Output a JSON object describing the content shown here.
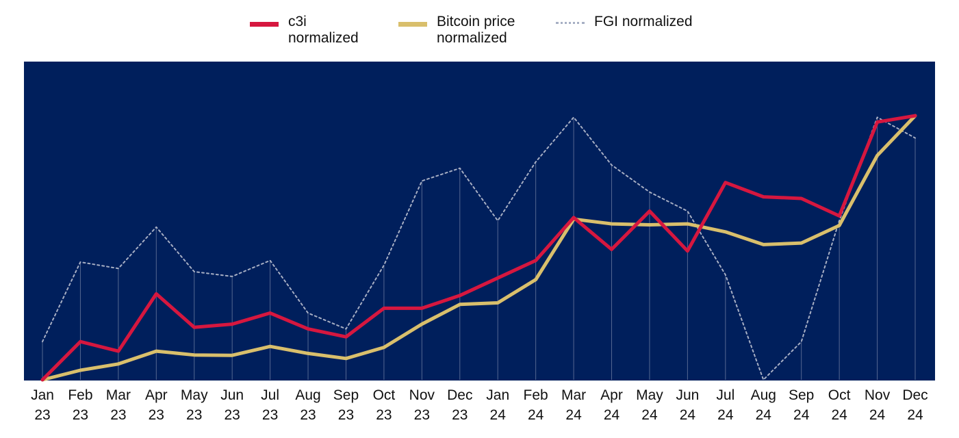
{
  "colors": {
    "background": "#ffffff",
    "plot_area": "#001f5c",
    "c3i": "#d6173f",
    "bitcoin": "#d9bf6c",
    "fgi": "#a7afc4",
    "guide": "#8d97b4",
    "text": "#111111"
  },
  "legend": [
    {
      "label": "c3i\nnormalized",
      "color": "#d6173f",
      "style": "solid"
    },
    {
      "label": "Bitcoin price\nnormalized",
      "color": "#d9bf6c",
      "style": "solid"
    },
    {
      "label": "FGI normalized",
      "color": "#a7afc4",
      "style": "dotted"
    }
  ],
  "chart_data": {
    "type": "line",
    "title": "",
    "xlabel": "",
    "ylabel": "",
    "ylim": [
      0,
      1
    ],
    "y_axis_labels": "none",
    "grid": false,
    "legend_position": "top",
    "x": [
      {
        "month": "Jan",
        "year": "23"
      },
      {
        "month": "Feb",
        "year": "23"
      },
      {
        "month": "Mar",
        "year": "23"
      },
      {
        "month": "Apr",
        "year": "23"
      },
      {
        "month": "May",
        "year": "23"
      },
      {
        "month": "Jun",
        "year": "23"
      },
      {
        "month": "Jul",
        "year": "23"
      },
      {
        "month": "Aug",
        "year": "23"
      },
      {
        "month": "Sep",
        "year": "23"
      },
      {
        "month": "Oct",
        "year": "23"
      },
      {
        "month": "Nov",
        "year": "23"
      },
      {
        "month": "Dec",
        "year": "23"
      },
      {
        "month": "Jan",
        "year": "24"
      },
      {
        "month": "Feb",
        "year": "24"
      },
      {
        "month": "Mar",
        "year": "24"
      },
      {
        "month": "Apr",
        "year": "24"
      },
      {
        "month": "May",
        "year": "24"
      },
      {
        "month": "Jun",
        "year": "24"
      },
      {
        "month": "Jul",
        "year": "24"
      },
      {
        "month": "Aug",
        "year": "24"
      },
      {
        "month": "Sep",
        "year": "24"
      },
      {
        "month": "Oct",
        "year": "24"
      },
      {
        "month": "Nov",
        "year": "24"
      },
      {
        "month": "Dec",
        "year": "24"
      }
    ],
    "series": [
      {
        "name": "c3i normalized",
        "style": "solid",
        "values": [
          0.0,
          0.12,
          0.09,
          0.27,
          0.165,
          0.175,
          0.21,
          0.16,
          0.135,
          0.225,
          0.225,
          0.265,
          0.32,
          0.375,
          0.51,
          0.41,
          0.53,
          0.405,
          0.62,
          0.575,
          0.57,
          0.515,
          0.81,
          0.83
        ]
      },
      {
        "name": "Bitcoin price normalized",
        "style": "solid",
        "values": [
          0.0,
          0.03,
          0.05,
          0.09,
          0.078,
          0.077,
          0.105,
          0.083,
          0.067,
          0.102,
          0.175,
          0.237,
          0.242,
          0.315,
          0.505,
          0.49,
          0.487,
          0.49,
          0.465,
          0.425,
          0.43,
          0.485,
          0.705,
          0.83
        ]
      },
      {
        "name": "FGI normalized",
        "style": "dotted",
        "values": [
          0.12,
          0.37,
          0.35,
          0.48,
          0.34,
          0.325,
          0.375,
          0.21,
          0.16,
          0.36,
          0.625,
          0.665,
          0.5,
          0.685,
          0.825,
          0.675,
          0.59,
          0.53,
          0.33,
          0.0,
          0.12,
          0.5,
          0.825,
          0.76
        ]
      }
    ],
    "drop_lines": {
      "series": "FGI normalized"
    }
  }
}
